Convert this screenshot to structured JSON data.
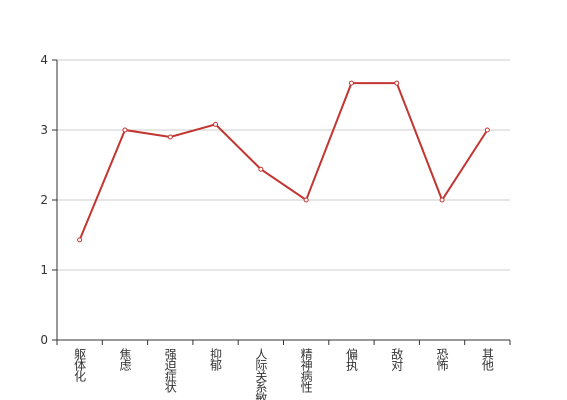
{
  "chart_data": {
    "type": "line",
    "categories": [
      "躯体化",
      "焦虑",
      "强迫症状",
      "抑郁",
      "人际关系敏感",
      "精神病性",
      "偏执",
      "敌对",
      "恐怖",
      "其他"
    ],
    "values": [
      1.43,
      3.0,
      2.9,
      3.08,
      2.44,
      2.0,
      3.67,
      3.67,
      2.0,
      3.0
    ],
    "color": "#c23531",
    "ylim": [
      0,
      4
    ],
    "yticks": [
      0,
      1,
      2,
      3,
      4
    ],
    "grid": true
  }
}
